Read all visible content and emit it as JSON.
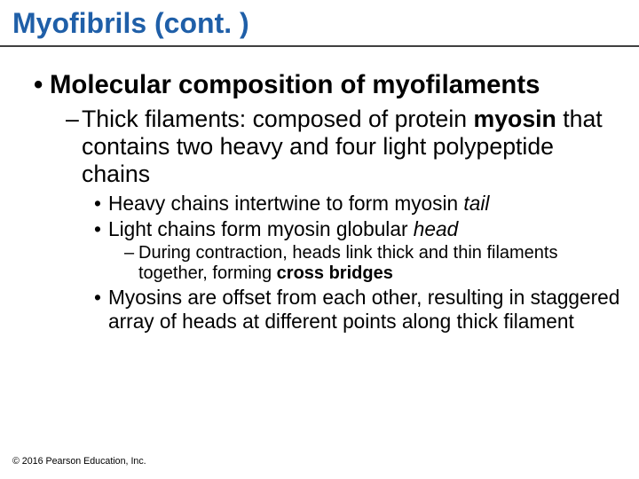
{
  "title": {
    "text": "Myofibrils (cont. )",
    "color": "#1f5fa8",
    "fontsize_pt": 24
  },
  "rule": {
    "color": "#404040"
  },
  "body": {
    "l1_fontsize_pt": 22,
    "l2_fontsize_pt": 20,
    "l3_fontsize_pt": 17,
    "l4_fontsize_pt": 15,
    "heading": "Molecular composition of myofilaments",
    "thick": {
      "pre": "Thick filaments: composed of protein ",
      "bold": "myosin",
      "post": " that contains two heavy and four light polypeptide chains"
    },
    "heavy": {
      "pre": "Heavy chains intertwine to form myosin ",
      "italic": "tail"
    },
    "light": {
      "pre": "Light chains form myosin globular ",
      "italic": "head"
    },
    "contraction": {
      "pre": "During contraction, heads link thick and thin filaments together, forming ",
      "bold": "cross bridges"
    },
    "offset": "Myosins are offset from each other, resulting in staggered array of heads at different points along thick filament"
  },
  "copyright": {
    "text": "© 2016 Pearson Education, Inc.",
    "fontsize_pt": 8,
    "color": "#000000"
  }
}
